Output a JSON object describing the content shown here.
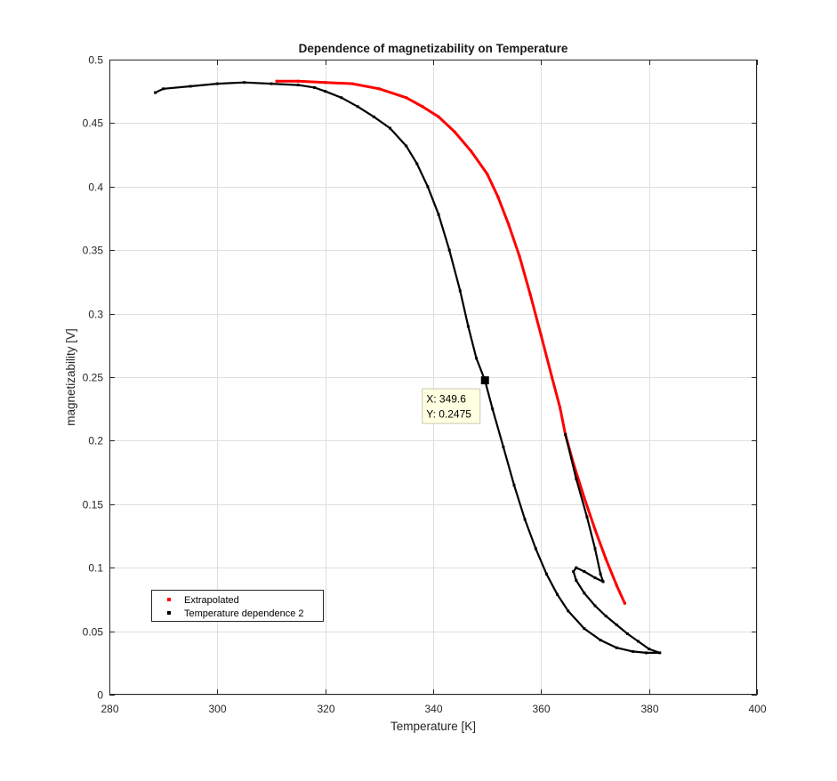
{
  "chart_data": {
    "type": "scatter",
    "title": "Dependence of magnetizability on Temperature",
    "xlabel": "Temperature [K]",
    "ylabel": "magnetizability [V]",
    "xlim": [
      280,
      400
    ],
    "ylim": [
      0,
      0.5
    ],
    "x_ticks": [
      "280",
      "300",
      "320",
      "340",
      "360",
      "380",
      "400"
    ],
    "y_ticks": [
      "0",
      "0.05",
      "0.1",
      "0.15",
      "0.2",
      "0.25",
      "0.3",
      "0.35",
      "0.4",
      "0.45",
      "0.5"
    ],
    "grid": true,
    "legend_position": "bottom-left",
    "series": [
      {
        "name": "Extrapolated",
        "color": "#ff0000",
        "x": [
          311.0,
          315.0,
          320.0,
          325.0,
          330.0,
          335.0,
          338.0,
          341.0,
          344.0,
          347.0,
          350.0,
          352.0,
          354.0,
          356.0,
          358.0,
          360.0,
          362.0,
          363.5,
          364.5,
          366.0,
          368.0,
          370.0,
          372.0,
          374.0,
          375.5
        ],
        "y": [
          0.483,
          0.483,
          0.482,
          0.481,
          0.477,
          0.47,
          0.463,
          0.455,
          0.443,
          0.428,
          0.41,
          0.392,
          0.37,
          0.345,
          0.315,
          0.283,
          0.25,
          0.226,
          0.205,
          0.182,
          0.155,
          0.13,
          0.107,
          0.086,
          0.072
        ]
      },
      {
        "name": "Temperature dependence 2",
        "color": "#000000",
        "x": [
          288.5,
          290.0,
          295.0,
          300.0,
          305.0,
          310.0,
          315.0,
          318.0,
          320.0,
          323.0,
          326.0,
          329.0,
          332.0,
          335.0,
          337.0,
          339.0,
          341.0,
          343.0,
          345.0,
          346.5,
          348.0,
          349.6,
          351.0,
          353.0,
          355.0,
          357.0,
          359.0,
          361.0,
          363.0,
          365.0,
          368.0,
          371.0,
          374.0,
          377.0,
          379.5,
          382.0,
          380.0,
          378.0,
          376.0,
          374.0,
          372.0,
          370.0,
          368.0,
          366.5,
          366.0,
          366.5,
          368.0,
          370.0,
          371.5,
          371.0,
          370.0,
          368.5,
          366.5,
          364.5
        ],
        "y": [
          0.474,
          0.477,
          0.479,
          0.481,
          0.482,
          0.481,
          0.48,
          0.478,
          0.475,
          0.47,
          0.463,
          0.455,
          0.446,
          0.432,
          0.418,
          0.4,
          0.378,
          0.35,
          0.318,
          0.29,
          0.265,
          0.2475,
          0.225,
          0.195,
          0.165,
          0.138,
          0.115,
          0.095,
          0.079,
          0.066,
          0.052,
          0.043,
          0.037,
          0.034,
          0.033,
          0.033,
          0.036,
          0.042,
          0.048,
          0.055,
          0.062,
          0.07,
          0.08,
          0.09,
          0.097,
          0.1,
          0.097,
          0.092,
          0.089,
          0.095,
          0.115,
          0.14,
          0.17,
          0.205
        ]
      }
    ],
    "datatip": {
      "x": 349.6,
      "y": 0.2475,
      "x_text": "X: 349.6",
      "y_text": "Y: 0.2475"
    }
  }
}
